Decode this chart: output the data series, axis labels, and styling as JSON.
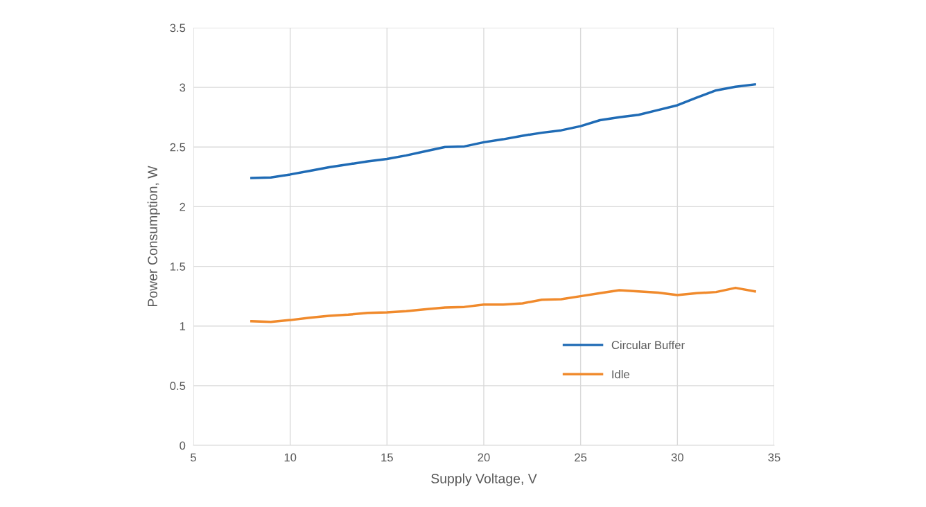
{
  "chart_data": {
    "type": "line",
    "xlabel": "Supply Voltage, V",
    "ylabel": "Power Consumption, W",
    "x": [
      8,
      9,
      10,
      11,
      12,
      13,
      14,
      15,
      16,
      17,
      18,
      19,
      20,
      21,
      22,
      23,
      24,
      25,
      26,
      27,
      28,
      29,
      30,
      31,
      32,
      33,
      34
    ],
    "series": [
      {
        "name": "Circular Buffer",
        "color": "#1f6bb5",
        "values": [
          2.24,
          2.245,
          2.27,
          2.3,
          2.33,
          2.355,
          2.38,
          2.4,
          2.43,
          2.465,
          2.5,
          2.505,
          2.54,
          2.565,
          2.595,
          2.62,
          2.64,
          2.675,
          2.725,
          2.75,
          2.77,
          2.81,
          2.85,
          2.915,
          2.975,
          3.005,
          3.025
        ]
      },
      {
        "name": "Idle",
        "color": "#f08a2c",
        "values": [
          1.04,
          1.035,
          1.05,
          1.07,
          1.085,
          1.095,
          1.11,
          1.115,
          1.125,
          1.14,
          1.155,
          1.16,
          1.18,
          1.18,
          1.19,
          1.22,
          1.225,
          1.25,
          1.275,
          1.3,
          1.29,
          1.28,
          1.26,
          1.275,
          1.285,
          1.32,
          1.29
        ]
      }
    ],
    "xlim": [
      5,
      35
    ],
    "xticks": [
      5,
      10,
      15,
      20,
      25,
      30,
      35
    ],
    "ylim": [
      0,
      3.5
    ],
    "yticks": [
      0,
      {
        "value": 0.5,
        "label": "0.5"
      },
      1,
      {
        "value": 1.5,
        "label": "1.5"
      },
      2,
      {
        "value": 2.5,
        "label": "2.5"
      },
      3,
      {
        "value": 3.5,
        "label": "3.5"
      }
    ],
    "grid": true,
    "legend": "bottom right",
    "marker": "none",
    "line_style": "solid"
  }
}
